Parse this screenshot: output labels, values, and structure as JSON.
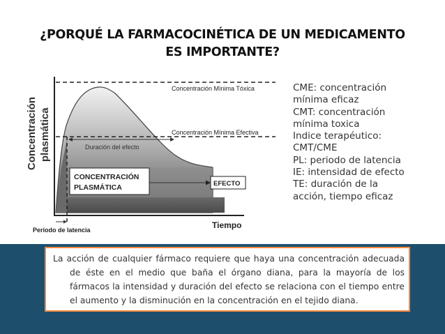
{
  "title": {
    "line1": "¿PORQUÉ LA FARMACOCINÉTICA DE UN MEDICAMENTO",
    "line2": "ES IMPORTANTE?"
  },
  "diagram": {
    "y_axis_label_line1": "Concentración",
    "y_axis_label_line2": "plasmática",
    "x_axis_label": "Tiempo",
    "latency_label": "Período de latencia",
    "max_toxic_label": "Concentración Mínima Tóxica",
    "min_effective_label": "Concentración Mínima Efectiva",
    "effect_duration_label": "Duración del efecto",
    "plasma_box_line1": "CONCENTRACIÓN",
    "plasma_box_line2": "PLASMÁTICA",
    "effect_box": "EFECTO"
  },
  "legend": [
    "CME: concentración",
    "mínima eficaz",
    "CMT: concentración",
    "mínima toxica",
    "Indice terapéutico:",
    "CMT/CME",
    "PL: periodo de latencia",
    "IE: intensidad de efecto",
    "TE: duración de la",
    "acción, tiempo eficaz"
  ],
  "description": "La acción de cualquier fármaco requiere que haya una concentración adecuada de éste en el medio que baña el órgano diana, para la mayoría de los fármacos la intensidad y duración del efecto se relaciona con el tiempo entre el aumento y la disminución en la concentración en el tejido diana.",
  "colors": {
    "band": "#1d4f6d",
    "textbox_border": "#ff8a3d"
  }
}
